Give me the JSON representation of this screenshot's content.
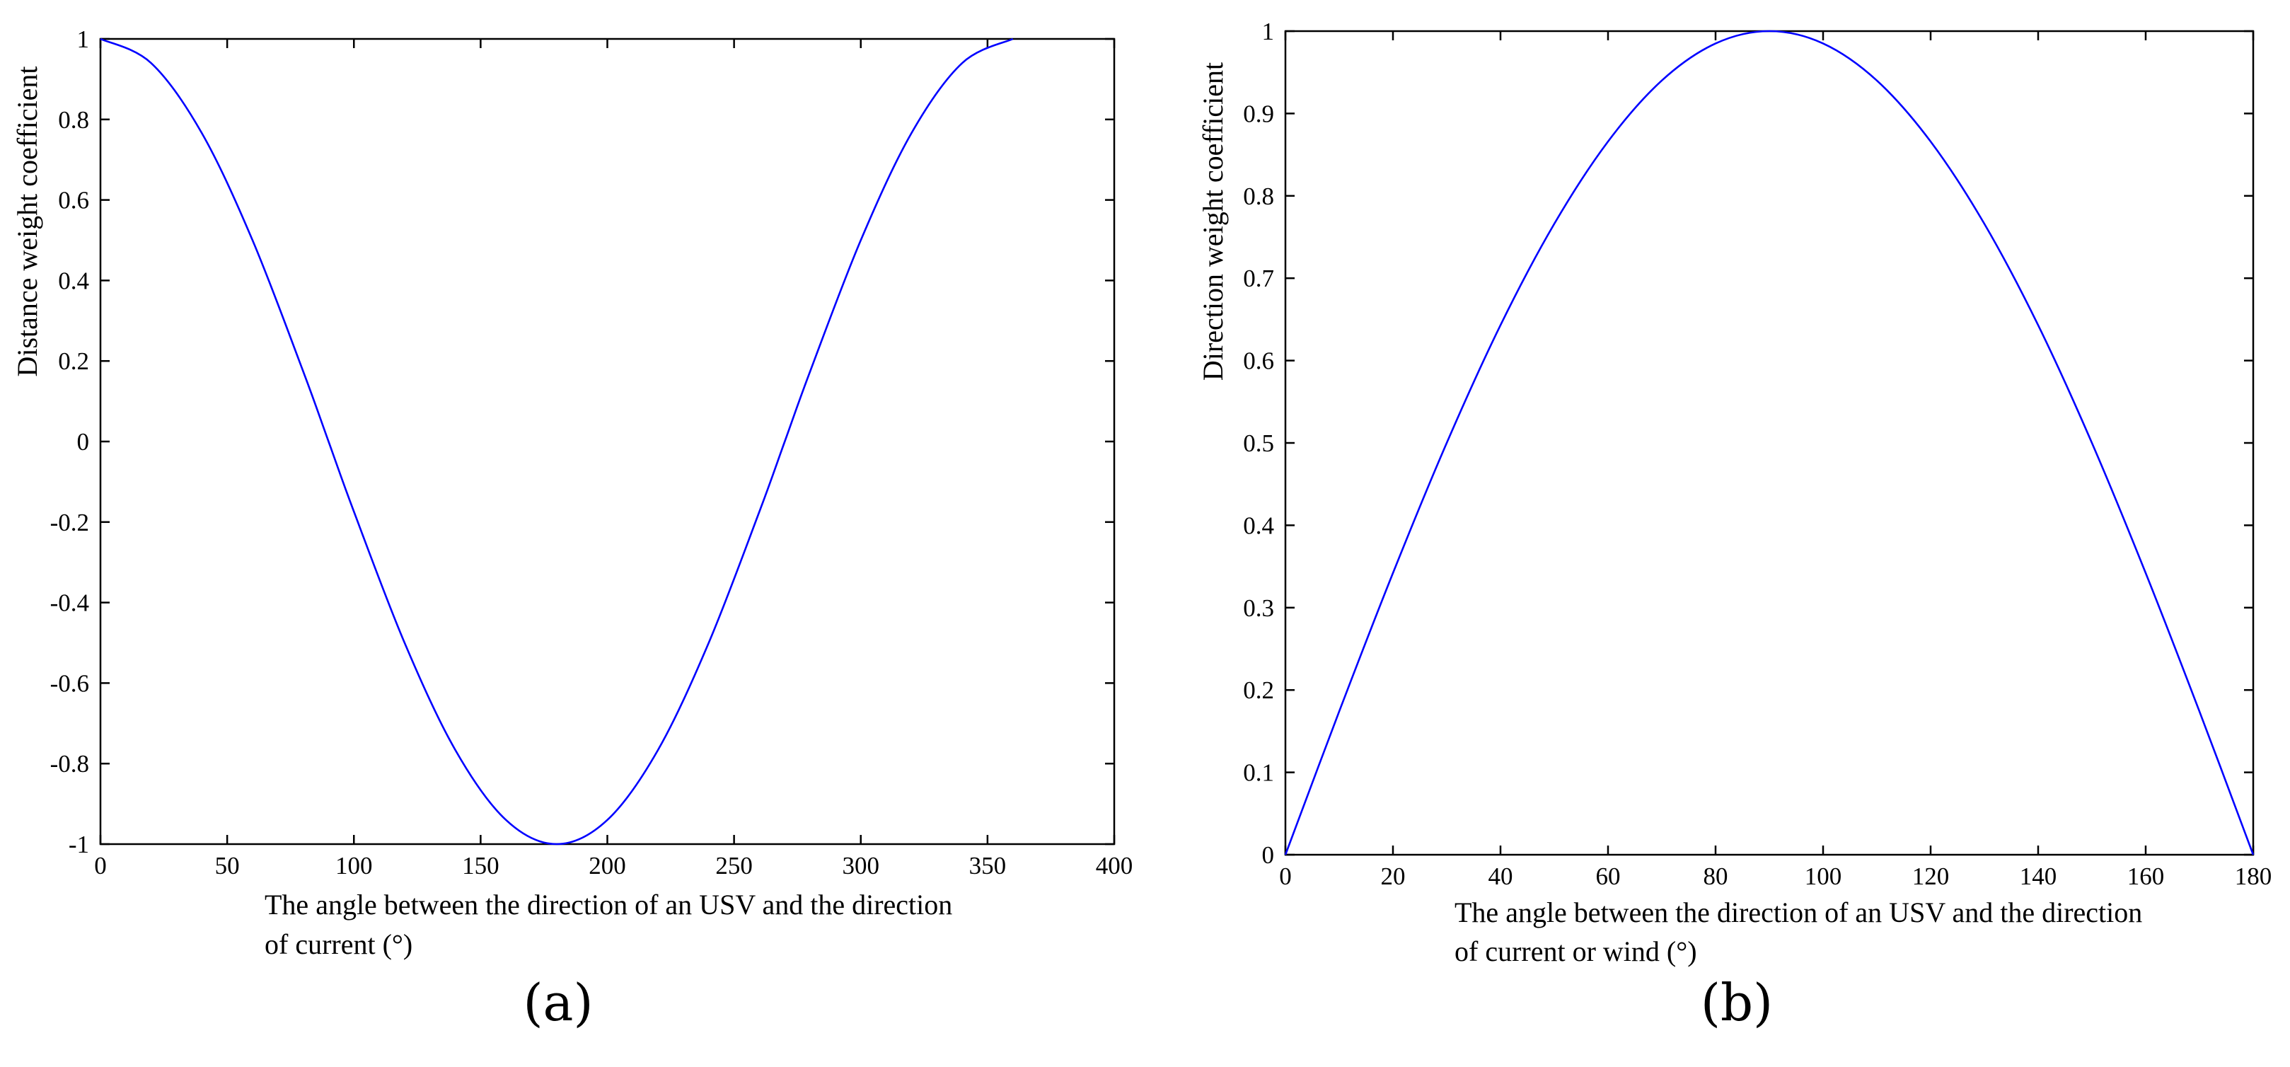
{
  "chart_data": [
    {
      "type": "line",
      "panel_label": "(a)",
      "ylabel": "Distance weight coefficient",
      "xlabel_lines": [
        "The angle between the direction of an USV and the direction",
        "of current (°)"
      ],
      "xlim": [
        0,
        400
      ],
      "ylim": [
        -1,
        1
      ],
      "xticks": [
        "0",
        "50",
        "100",
        "150",
        "200",
        "250",
        "300",
        "350",
        "400"
      ],
      "yticks": [
        "1",
        "0.8",
        "0.6",
        "0.4",
        "0.2",
        "0",
        "-0.2",
        "-0.4",
        "-0.6",
        "-0.8",
        "-1"
      ],
      "grid": false,
      "line_color": "#0000ff",
      "series": [
        {
          "x": [
            0,
            20,
            40,
            60,
            80,
            90,
            100,
            120,
            140,
            160,
            180,
            200,
            220,
            240,
            260,
            270,
            280,
            300,
            320,
            340,
            360
          ],
          "y": [
            1,
            0.94,
            0.766,
            0.5,
            0.174,
            0,
            -0.174,
            -0.5,
            -0.766,
            -0.94,
            -1,
            -0.94,
            -0.766,
            -0.5,
            -0.174,
            0,
            0.174,
            0.5,
            0.766,
            0.94,
            1
          ]
        }
      ]
    },
    {
      "type": "line",
      "panel_label": "(b)",
      "ylabel": "Direction weight coefficient",
      "xlabel_lines": [
        "The angle between the direction of an USV and the direction",
        "of current or wind (°)"
      ],
      "xlim": [
        0,
        180
      ],
      "ylim": [
        0,
        1
      ],
      "xticks": [
        "0",
        "20",
        "40",
        "60",
        "80",
        "100",
        "120",
        "140",
        "160",
        "180"
      ],
      "yticks": [
        "1",
        "0.9",
        "0.8",
        "0.7",
        "0.6",
        "0.5",
        "0.4",
        "0.3",
        "0.2",
        "0.1",
        "0"
      ],
      "grid": false,
      "line_color": "#0000ff",
      "series": [
        {
          "x": [
            0,
            10,
            20,
            30,
            40,
            50,
            60,
            70,
            80,
            90,
            100,
            110,
            120,
            130,
            140,
            150,
            160,
            170,
            180
          ],
          "y": [
            0,
            0.174,
            0.342,
            0.5,
            0.643,
            0.766,
            0.866,
            0.94,
            0.985,
            1,
            0.985,
            0.94,
            0.866,
            0.766,
            0.643,
            0.5,
            0.342,
            0.174,
            0
          ]
        }
      ]
    }
  ]
}
